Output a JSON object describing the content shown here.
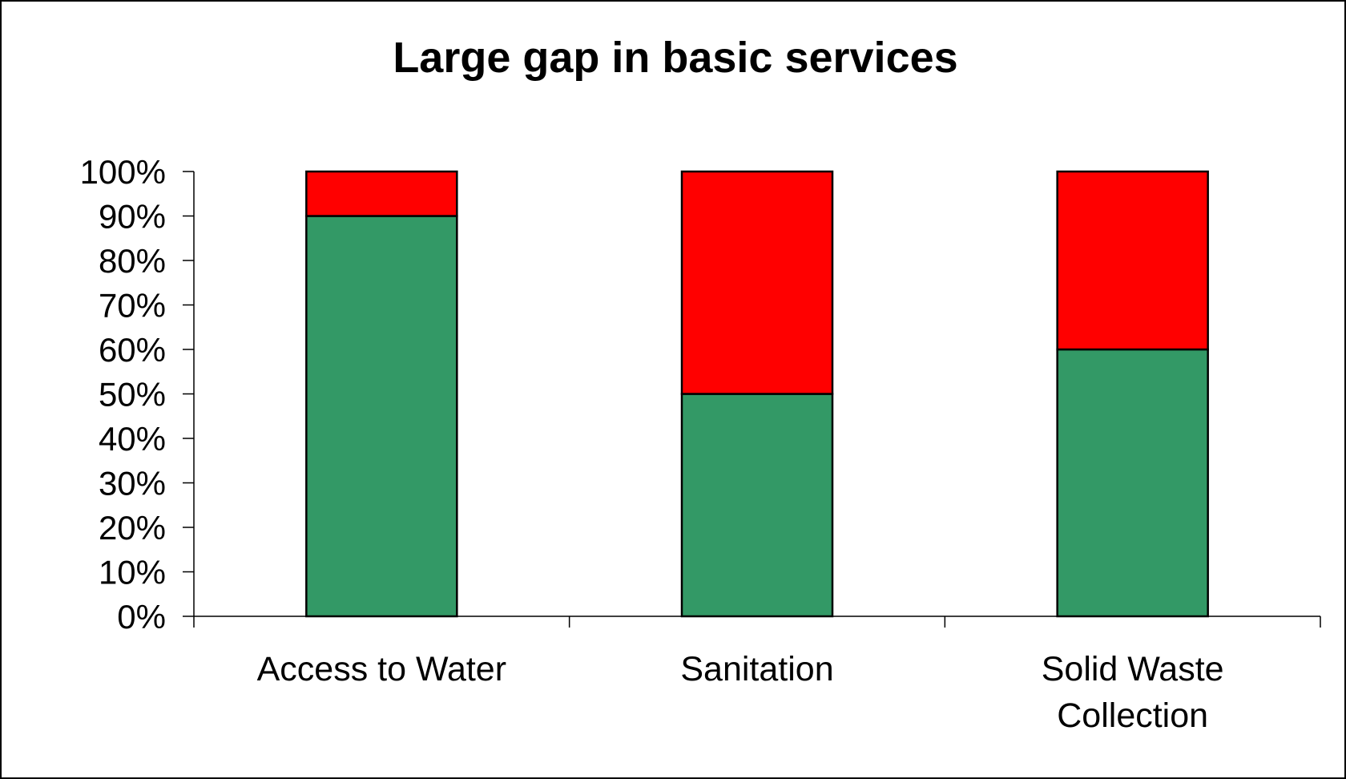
{
  "chart_data": {
    "type": "bar",
    "stacked": true,
    "title": "Large gap in basic services",
    "xlabel": "",
    "ylabel": "",
    "ylim": [
      0,
      100
    ],
    "ytick_labels": [
      "0%",
      "10%",
      "20%",
      "30%",
      "40%",
      "50%",
      "60%",
      "70%",
      "80%",
      "90%",
      "100%"
    ],
    "categories": [
      [
        "Access to Water"
      ],
      [
        "Sanitation"
      ],
      [
        "Solid Waste",
        "Collection"
      ]
    ],
    "series": [
      {
        "color": "#339966",
        "values": [
          90,
          50,
          60
        ]
      },
      {
        "color": "#ff0000",
        "values": [
          10,
          50,
          40
        ]
      }
    ],
    "legend": "none",
    "grid": false
  }
}
